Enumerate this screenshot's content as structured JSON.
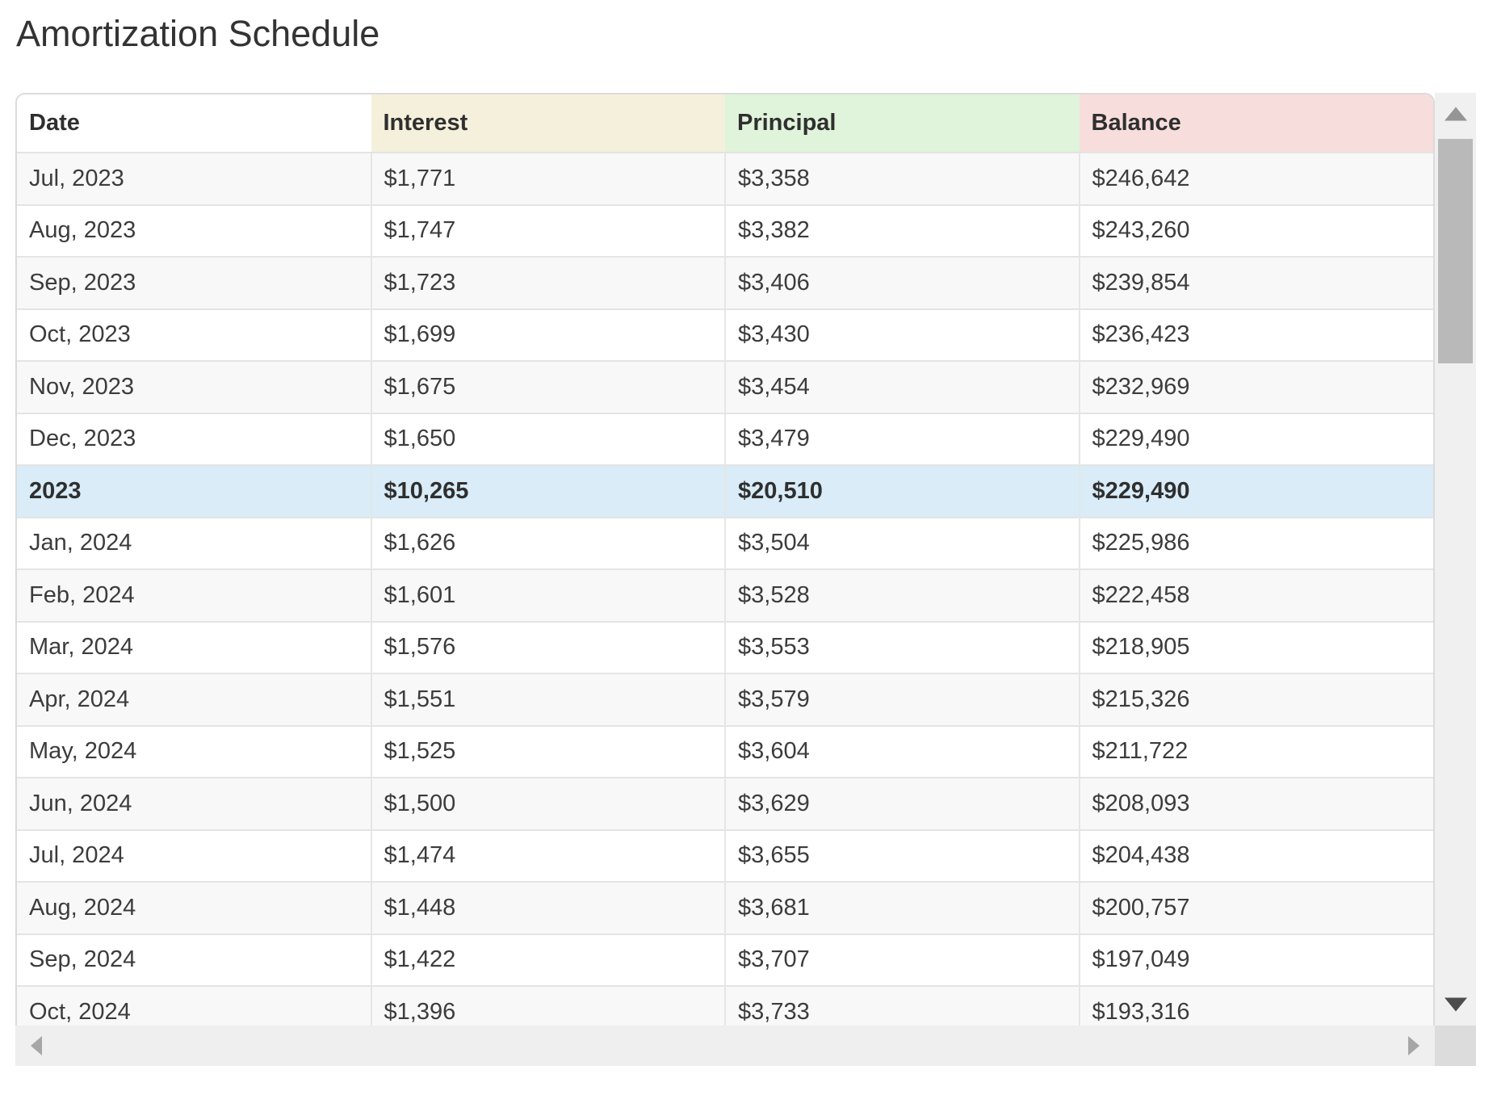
{
  "page": {
    "title": "Amortization Schedule"
  },
  "table": {
    "columns": [
      {
        "key": "date",
        "label": "Date",
        "bg": "#ffffff"
      },
      {
        "key": "interest",
        "label": "Interest",
        "bg": "#f5f0dc"
      },
      {
        "key": "principal",
        "label": "Principal",
        "bg": "#e0f3db"
      },
      {
        "key": "balance",
        "label": "Balance",
        "bg": "#f8dddd"
      }
    ],
    "rows": [
      {
        "type": "month",
        "cells": [
          "Jul, 2023",
          "$1,771",
          "$3,358",
          "$246,642"
        ]
      },
      {
        "type": "month",
        "cells": [
          "Aug, 2023",
          "$1,747",
          "$3,382",
          "$243,260"
        ]
      },
      {
        "type": "month",
        "cells": [
          "Sep, 2023",
          "$1,723",
          "$3,406",
          "$239,854"
        ]
      },
      {
        "type": "month",
        "cells": [
          "Oct, 2023",
          "$1,699",
          "$3,430",
          "$236,423"
        ]
      },
      {
        "type": "month",
        "cells": [
          "Nov, 2023",
          "$1,675",
          "$3,454",
          "$232,969"
        ]
      },
      {
        "type": "month",
        "cells": [
          "Dec, 2023",
          "$1,650",
          "$3,479",
          "$229,490"
        ]
      },
      {
        "type": "summary",
        "cells": [
          "2023",
          "$10,265",
          "$20,510",
          "$229,490"
        ]
      },
      {
        "type": "month",
        "cells": [
          "Jan, 2024",
          "$1,626",
          "$3,504",
          "$225,986"
        ]
      },
      {
        "type": "month",
        "cells": [
          "Feb, 2024",
          "$1,601",
          "$3,528",
          "$222,458"
        ]
      },
      {
        "type": "month",
        "cells": [
          "Mar, 2024",
          "$1,576",
          "$3,553",
          "$218,905"
        ]
      },
      {
        "type": "month",
        "cells": [
          "Apr, 2024",
          "$1,551",
          "$3,579",
          "$215,326"
        ]
      },
      {
        "type": "month",
        "cells": [
          "May, 2024",
          "$1,525",
          "$3,604",
          "$211,722"
        ]
      },
      {
        "type": "month",
        "cells": [
          "Jun, 2024",
          "$1,500",
          "$3,629",
          "$208,093"
        ]
      },
      {
        "type": "month",
        "cells": [
          "Jul, 2024",
          "$1,474",
          "$3,655",
          "$204,438"
        ]
      },
      {
        "type": "month",
        "cells": [
          "Aug, 2024",
          "$1,448",
          "$3,681",
          "$200,757"
        ]
      },
      {
        "type": "month",
        "cells": [
          "Sep, 2024",
          "$1,422",
          "$3,707",
          "$197,049"
        ]
      },
      {
        "type": "month",
        "cells": [
          "Oct, 2024",
          "$1,396",
          "$3,733",
          "$193,316"
        ]
      }
    ],
    "summary_row_bg": "#d9ecf8",
    "odd_row_bg": "#f8f8f8"
  }
}
